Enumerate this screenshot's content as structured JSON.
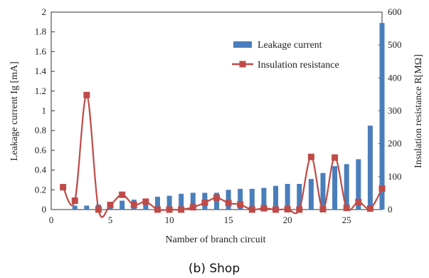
{
  "chart_data": {
    "type": "bar+line",
    "caption": "(b) Shop",
    "xlabel": "Namber of branch circuit",
    "ylabel_left": "Leakage current Ig [mA]",
    "ylabel_right": "Insulation resistance R[MΩ]",
    "xlim": [
      0,
      28
    ],
    "ylim_left": [
      0,
      2
    ],
    "ylim_right": [
      0,
      600
    ],
    "x_ticks": [
      "0",
      "5",
      "10",
      "15",
      "20",
      "25"
    ],
    "y_ticks_left": [
      "0",
      "0.2",
      "0.4",
      "0.6",
      "0.8",
      "1",
      "1.2",
      "1.4",
      "1.6",
      "1.8",
      "2"
    ],
    "y_ticks_right": [
      "0",
      "100",
      "200",
      "300",
      "400",
      "500",
      "600"
    ],
    "legend": {
      "placement": "top-right",
      "bar_label": "Leakage current",
      "line_label": "Insulation resistance"
    },
    "bars": {
      "name": "Leakage current",
      "axis": "left",
      "color": "#4a7ebb",
      "x": [
        2,
        3,
        4,
        5,
        6,
        7,
        8,
        9,
        10,
        11,
        12,
        13,
        14,
        15,
        16,
        17,
        18,
        19,
        20,
        21,
        22,
        23,
        24,
        25,
        26,
        27,
        28
      ],
      "values": [
        0.04,
        0.04,
        0.05,
        0.07,
        0.09,
        0.1,
        0.11,
        0.13,
        0.14,
        0.16,
        0.17,
        0.17,
        0.17,
        0.2,
        0.21,
        0.21,
        0.22,
        0.24,
        0.26,
        0.26,
        0.31,
        0.37,
        0.44,
        0.46,
        0.51,
        0.85,
        1.89
      ]
    },
    "line": {
      "name": "Insulation resistance",
      "axis": "right",
      "color": "#be4b48",
      "x": [
        1,
        2,
        3,
        4,
        5,
        6,
        7,
        8,
        9,
        10,
        11,
        12,
        13,
        14,
        15,
        16,
        17,
        18,
        19,
        20,
        21,
        22,
        23,
        24,
        25,
        26,
        27,
        28
      ],
      "values": [
        68,
        27,
        348,
        0,
        14,
        45,
        14,
        24,
        0,
        0,
        0,
        7,
        21,
        36,
        20,
        15,
        0,
        4,
        0,
        1,
        0,
        160,
        1,
        158,
        5,
        23,
        3,
        64
      ]
    }
  }
}
